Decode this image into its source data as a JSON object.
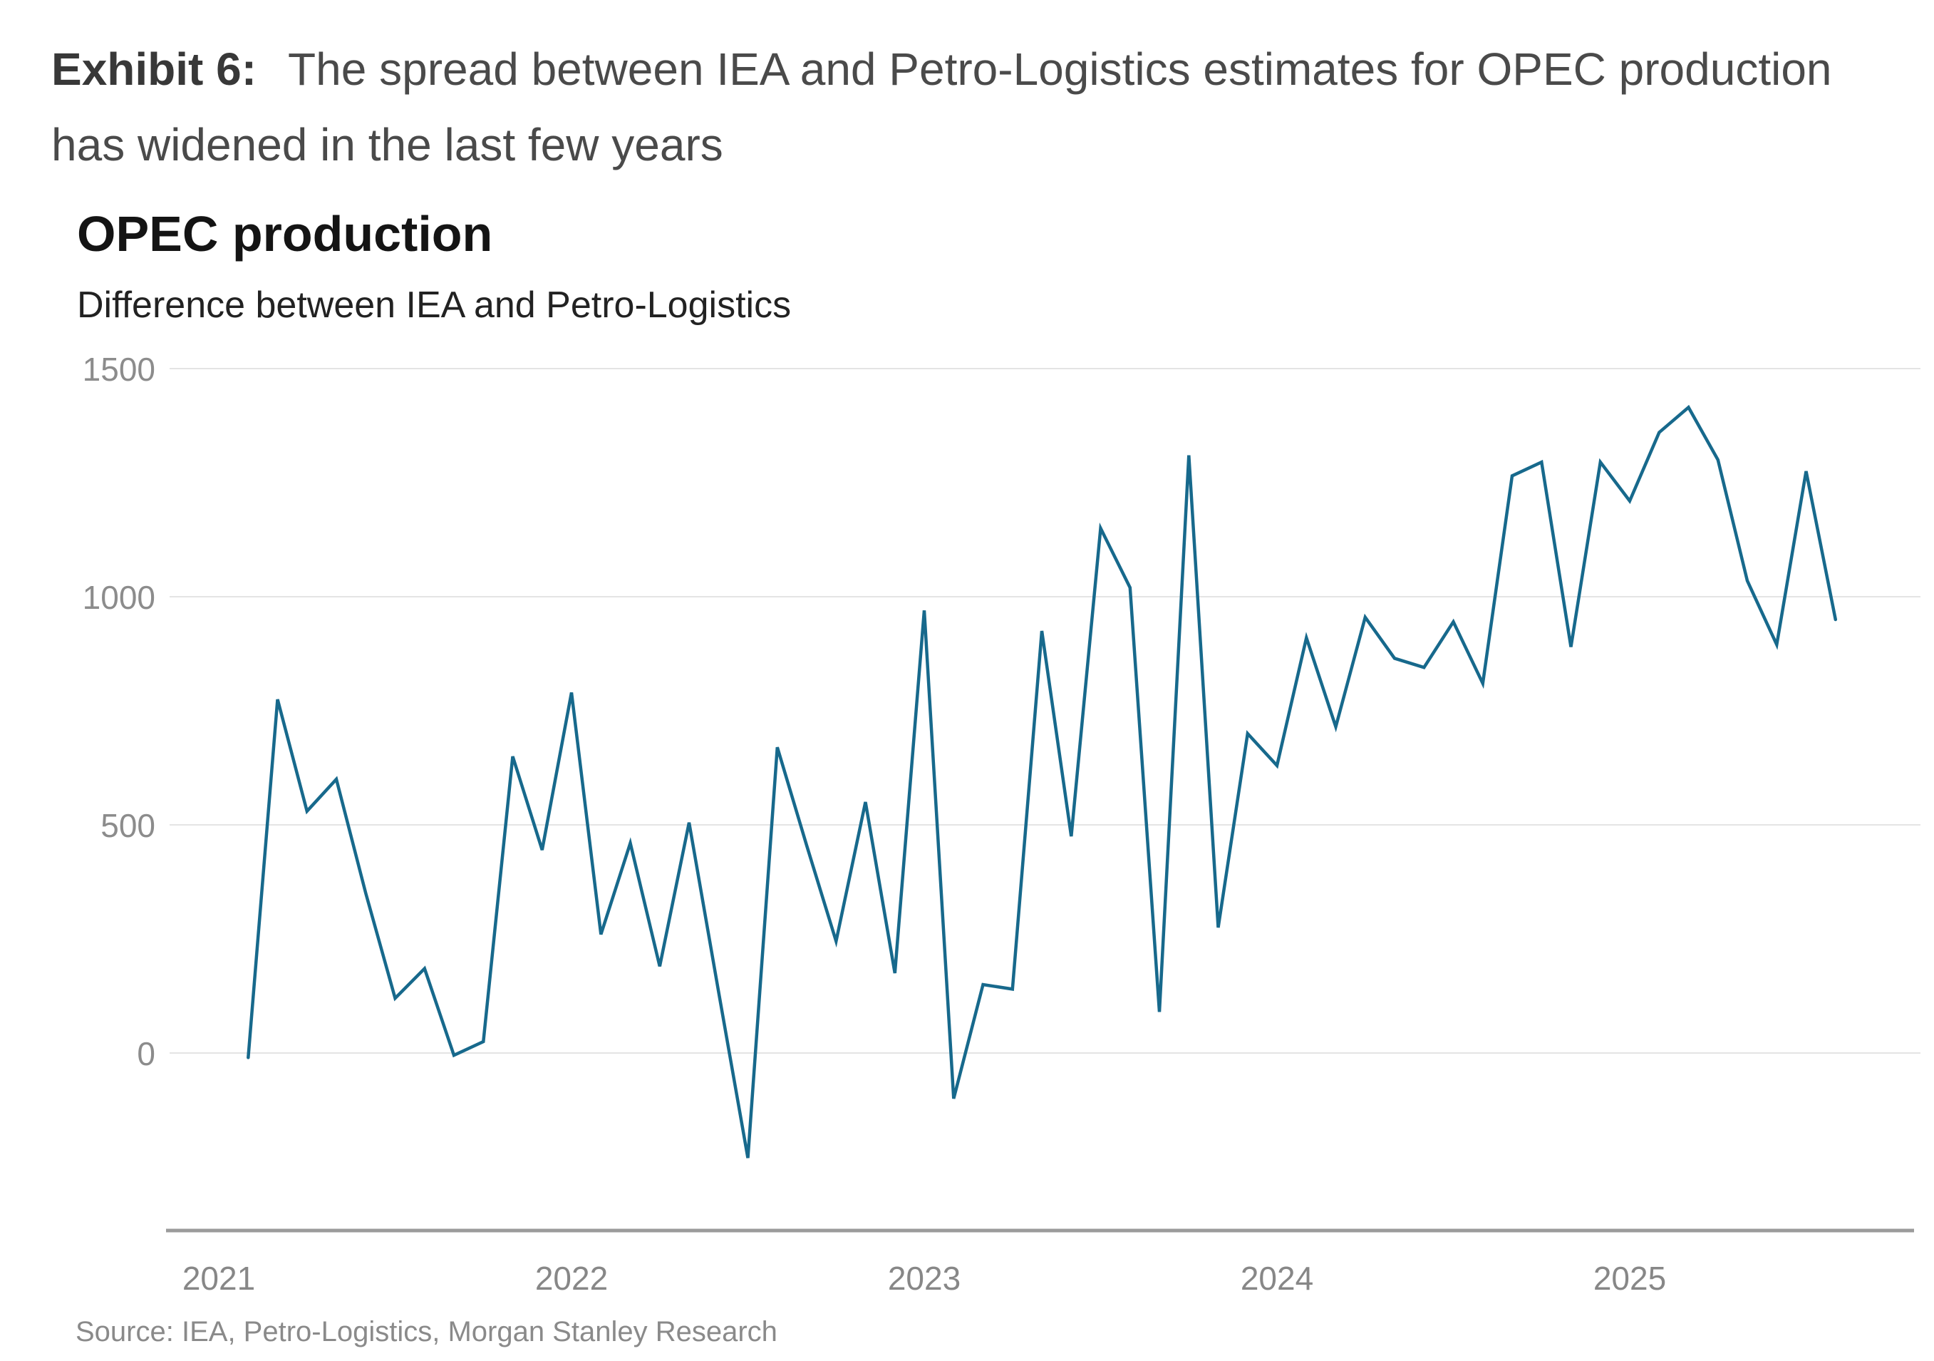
{
  "headline": {
    "label": "Exhibit 6:",
    "text_line1": "The spread between IEA and Petro-Logistics estimates for OPEC production",
    "text_line2": "has widened in the last few years"
  },
  "chart": {
    "title": "OPEC production",
    "subtitle": "Difference between IEA and Petro-Logistics",
    "source": "Source: IEA, Petro-Logistics, Morgan Stanley Research"
  },
  "chart_data": {
    "type": "line",
    "title": "OPEC production",
    "subtitle": "Difference between IEA and Petro-Logistics",
    "x_start_month": "2021-02",
    "x_frequency": "monthly",
    "x": [
      "2021-02",
      "2021-03",
      "2021-04",
      "2021-05",
      "2021-06",
      "2021-07",
      "2021-08",
      "2021-09",
      "2021-10",
      "2021-11",
      "2021-12",
      "2022-01",
      "2022-02",
      "2022-03",
      "2022-04",
      "2022-05",
      "2022-06",
      "2022-07",
      "2022-08",
      "2022-09",
      "2022-10",
      "2022-11",
      "2022-12",
      "2023-01",
      "2023-02",
      "2023-03",
      "2023-04",
      "2023-05",
      "2023-06",
      "2023-07",
      "2023-08",
      "2023-09",
      "2023-10",
      "2023-11",
      "2023-12",
      "2024-01",
      "2024-02",
      "2024-03",
      "2024-04",
      "2024-05",
      "2024-06",
      "2024-07",
      "2024-08",
      "2024-09",
      "2024-10",
      "2024-11",
      "2024-12",
      "2025-01",
      "2025-02",
      "2025-03",
      "2025-04",
      "2025-05",
      "2025-06",
      "2025-07",
      "2025-08"
    ],
    "values": [
      -10,
      775,
      530,
      600,
      350,
      120,
      185,
      -5,
      25,
      650,
      445,
      790,
      260,
      460,
      190,
      505,
      135,
      -230,
      670,
      455,
      245,
      550,
      175,
      970,
      -100,
      150,
      140,
      925,
      475,
      1150,
      1020,
      90,
      1310,
      275,
      700,
      630,
      910,
      715,
      955,
      865,
      845,
      945,
      810,
      1265,
      1295,
      890,
      1295,
      1210,
      1360,
      1415,
      1300,
      1035,
      895,
      1275,
      950
    ],
    "yticks": [
      1500,
      1000,
      500,
      0
    ],
    "ytick_labels": [
      "1500",
      "1000",
      "500",
      "0"
    ],
    "xticks": [
      2021,
      2022,
      2023,
      2024,
      2025
    ],
    "xtick_labels": [
      "2021",
      "2022",
      "2023",
      "2024",
      "2025"
    ],
    "ylim": [
      -300,
      1500
    ],
    "grid": "horizontal",
    "legend": "none",
    "line_color": "#17698c",
    "grid_color": "#e4e4e4",
    "axis_color": "#9b9b9b"
  }
}
